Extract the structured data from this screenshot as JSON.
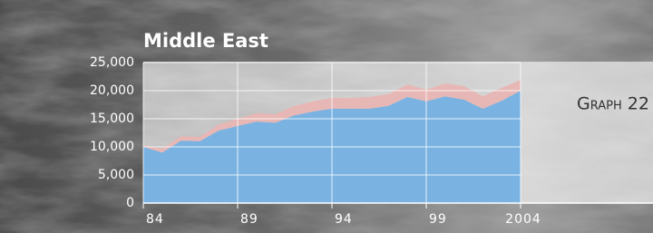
{
  "chart_data": {
    "type": "stacked-area",
    "title": "Middle East",
    "annotation": "Graph 22",
    "x": [
      1984,
      1985,
      1986,
      1987,
      1988,
      1989,
      1990,
      1991,
      1992,
      1993,
      1994,
      1995,
      1996,
      1997,
      1998,
      1999,
      2000,
      2001,
      2002,
      2003,
      2004
    ],
    "series": [
      {
        "color": "#7ab3e2",
        "values": [
          10000,
          9000,
          11100,
          11000,
          12900,
          13700,
          14500,
          14300,
          15600,
          16300,
          16800,
          16800,
          16800,
          17300,
          18900,
          18100,
          19000,
          18400,
          16800,
          18200,
          20000
        ]
      },
      {
        "color": "#e7b7b5",
        "values": [
          300,
          700,
          800,
          800,
          1100,
          1300,
          1500,
          1500,
          1700,
          1800,
          1900,
          1900,
          2100,
          2100,
          2200,
          2100,
          2300,
          2400,
          2200,
          2300,
          1900
        ]
      }
    ],
    "xlim": [
      1984,
      2004
    ],
    "xticks": [
      {
        "value": 1984,
        "label": "84"
      },
      {
        "value": 1989,
        "label": "89"
      },
      {
        "value": 1994,
        "label": "94"
      },
      {
        "value": 1999,
        "label": "99"
      },
      2004
    ],
    "ylim": [
      0,
      25000
    ],
    "yticks": [
      0,
      {
        "value": 5000,
        "label": "5,000"
      },
      {
        "value": 10000,
        "label": "10,000"
      },
      {
        "value": 15000,
        "label": "15,000"
      },
      {
        "value": 20000,
        "label": "20,000"
      },
      {
        "value": 25000,
        "label": "25,000"
      }
    ],
    "grid": true
  }
}
